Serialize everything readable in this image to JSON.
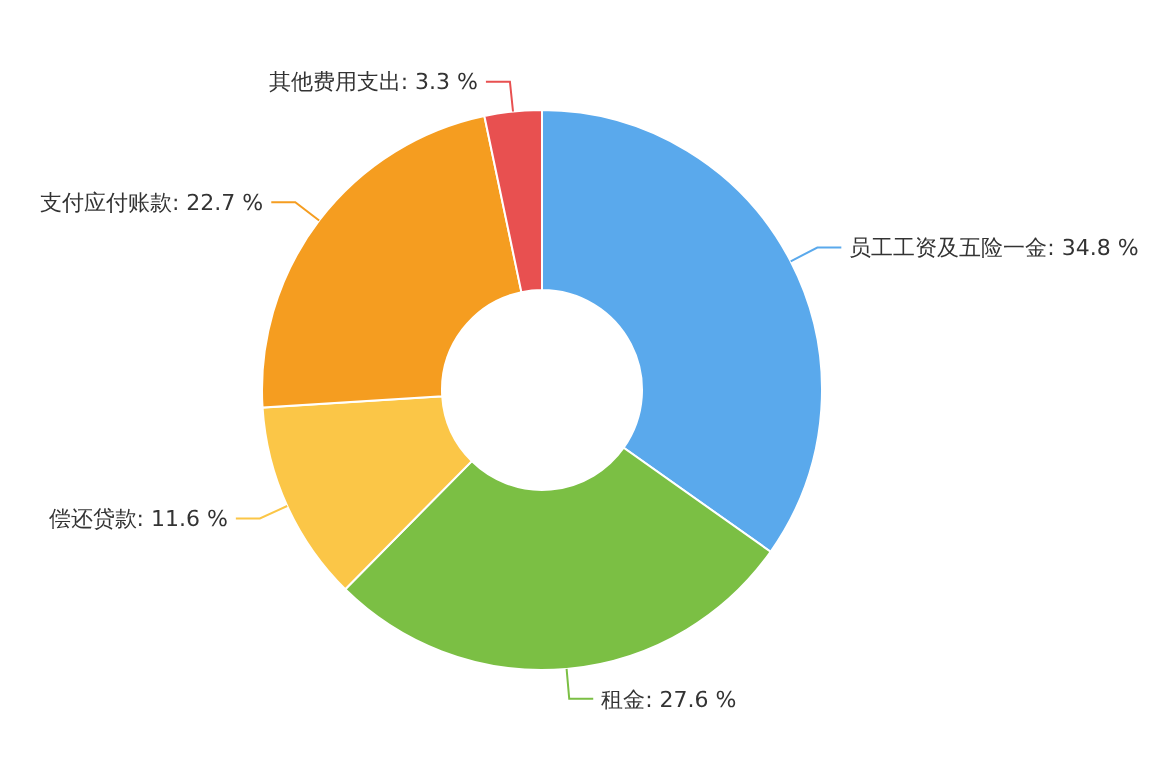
{
  "chart_data": {
    "type": "donut",
    "categories": [
      "员工工资及五险一金",
      "租金",
      "偿还贷款",
      "支付应付账款",
      "其他费用支出"
    ],
    "values": [
      34.8,
      27.6,
      11.6,
      22.7,
      3.3
    ],
    "value_labels": [
      "34.8 %",
      "27.6 %",
      "11.6 %",
      "22.7 %",
      "3.3 %"
    ],
    "colors": [
      "#5aa9ec",
      "#7bbf44",
      "#fbc647",
      "#f59d20",
      "#e85050"
    ]
  }
}
